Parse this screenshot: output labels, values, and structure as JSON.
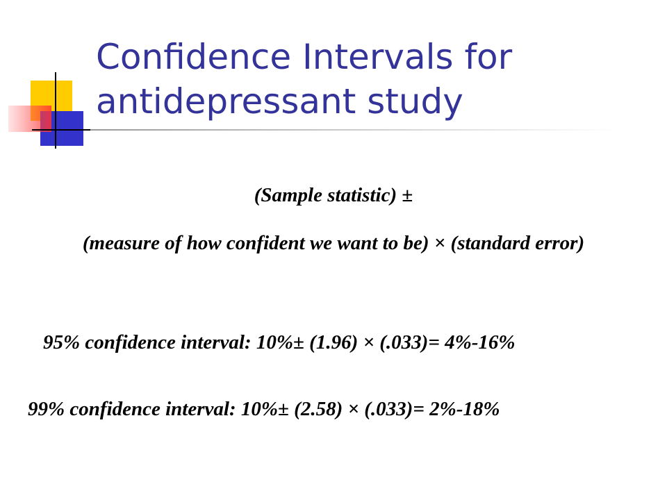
{
  "header": {
    "title": "Confidence Intervals for antidepressant study"
  },
  "body": {
    "formula": [
      "(Sample statistic) ±",
      "(measure of how confident we want to be) × (standard error)"
    ],
    "intervals": [
      "95% confidence interval: 10%±  (1.96) × (.033)= 4%-16%",
      "99% confidence interval: 10%±  (2.58) × (.033)= 2%-18%"
    ]
  }
}
